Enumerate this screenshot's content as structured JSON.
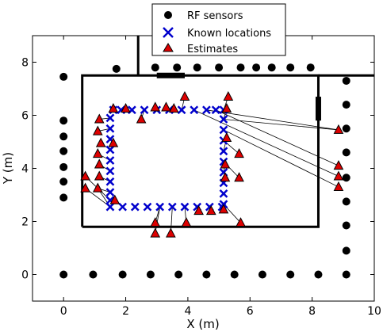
{
  "chart_data": {
    "type": "scatter",
    "xlabel": "X (m)",
    "ylabel": "Y (m)",
    "xlim": [
      -1,
      10
    ],
    "ylim": [
      -1,
      9
    ],
    "xticks": [
      "0",
      "2",
      "4",
      "6",
      "8",
      "10"
    ],
    "yticks": [
      "0",
      "2",
      "4",
      "6",
      "8"
    ],
    "grid": false,
    "legend_position": "top-center",
    "colors": {
      "sensor": "#000000",
      "known": "#0000cc",
      "estimate": "#dd0000"
    },
    "legend": [
      "RF sensors",
      "Known locations",
      "Estimates"
    ],
    "walls": [
      [
        [
          0.6,
          1.8
        ],
        [
          8.2,
          1.8
        ],
        [
          8.2,
          7.5
        ],
        [
          0.6,
          7.5
        ],
        [
          0.6,
          1.8
        ]
      ],
      [
        [
          8.2,
          7.5
        ],
        [
          10.0,
          7.5
        ]
      ],
      [
        [
          2.4,
          7.5
        ],
        [
          2.4,
          9.0
        ]
      ]
    ],
    "doors": [
      [
        [
          3.0,
          7.5
        ],
        [
          3.9,
          7.5
        ]
      ],
      [
        [
          8.2,
          5.8
        ],
        [
          8.2,
          6.7
        ]
      ]
    ],
    "sensors": [
      [
        0,
        0
      ],
      [
        0.95,
        0
      ],
      [
        1.9,
        0
      ],
      [
        2.8,
        0
      ],
      [
        3.7,
        0
      ],
      [
        4.6,
        0
      ],
      [
        5.5,
        0
      ],
      [
        6.4,
        0
      ],
      [
        7.3,
        0
      ],
      [
        8.2,
        0
      ],
      [
        9.1,
        0
      ],
      [
        9.1,
        0.9
      ],
      [
        9.1,
        1.85
      ],
      [
        9.1,
        2.75
      ],
      [
        9.1,
        3.65
      ],
      [
        9.1,
        4.6
      ],
      [
        9.1,
        5.5
      ],
      [
        9.1,
        6.4
      ],
      [
        9.1,
        7.3
      ],
      [
        0,
        2.9
      ],
      [
        0,
        3.5
      ],
      [
        0,
        4.05
      ],
      [
        0,
        4.65
      ],
      [
        0,
        5.2
      ],
      [
        0,
        5.8
      ],
      [
        0,
        7.45
      ],
      [
        1.7,
        7.75
      ],
      [
        2.95,
        7.8
      ],
      [
        3.65,
        7.8
      ],
      [
        4.3,
        7.8
      ],
      [
        5.0,
        7.8
      ],
      [
        5.7,
        7.8
      ],
      [
        6.2,
        7.8
      ],
      [
        6.7,
        7.8
      ],
      [
        7.3,
        7.8
      ],
      [
        7.95,
        7.8
      ]
    ],
    "known": [
      [
        1.5,
        2.55
      ],
      [
        1.9,
        2.55
      ],
      [
        2.3,
        2.55
      ],
      [
        2.7,
        2.55
      ],
      [
        3.1,
        2.55
      ],
      [
        3.5,
        2.55
      ],
      [
        3.9,
        2.55
      ],
      [
        4.3,
        2.55
      ],
      [
        4.7,
        2.55
      ],
      [
        5.1,
        2.55
      ],
      [
        5.15,
        2.65
      ],
      [
        5.15,
        3.05
      ],
      [
        5.15,
        3.45
      ],
      [
        5.15,
        3.85
      ],
      [
        5.15,
        4.25
      ],
      [
        5.15,
        4.65
      ],
      [
        5.15,
        5.05
      ],
      [
        5.15,
        5.45
      ],
      [
        5.15,
        5.85
      ],
      [
        5.15,
        6.2
      ],
      [
        4.9,
        6.2
      ],
      [
        4.6,
        6.2
      ],
      [
        4.2,
        6.2
      ],
      [
        3.8,
        6.2
      ],
      [
        3.4,
        6.2
      ],
      [
        3.0,
        6.2
      ],
      [
        2.6,
        6.2
      ],
      [
        2.2,
        6.2
      ],
      [
        1.85,
        6.2
      ],
      [
        1.6,
        6.2
      ],
      [
        1.5,
        5.9
      ],
      [
        1.5,
        5.5
      ],
      [
        1.5,
        5.1
      ],
      [
        1.5,
        4.7
      ],
      [
        1.5,
        4.3
      ],
      [
        1.5,
        3.9
      ],
      [
        1.5,
        3.5
      ],
      [
        1.5,
        3.1
      ],
      [
        1.5,
        2.8
      ]
    ],
    "estimates": [
      [
        0.7,
        3.7
      ],
      [
        0.7,
        3.25
      ],
      [
        1.1,
        3.25
      ],
      [
        1.15,
        3.7
      ],
      [
        1.15,
        4.15
      ],
      [
        1.1,
        4.55
      ],
      [
        1.2,
        4.95
      ],
      [
        1.1,
        5.4
      ],
      [
        1.15,
        5.85
      ],
      [
        1.6,
        4.95
      ],
      [
        1.6,
        6.25
      ],
      [
        1.65,
        2.8
      ],
      [
        2.0,
        6.25
      ],
      [
        2.5,
        5.85
      ],
      [
        2.95,
        6.3
      ],
      [
        3.3,
        6.3
      ],
      [
        3.55,
        6.25
      ],
      [
        3.9,
        6.7
      ],
      [
        2.95,
        1.95
      ],
      [
        2.95,
        1.55
      ],
      [
        3.45,
        1.55
      ],
      [
        3.95,
        1.95
      ],
      [
        4.35,
        2.4
      ],
      [
        4.75,
        2.4
      ],
      [
        5.15,
        2.45
      ],
      [
        5.7,
        1.95
      ],
      [
        5.2,
        3.65
      ],
      [
        5.2,
        4.15
      ],
      [
        5.25,
        5.15
      ],
      [
        5.65,
        3.65
      ],
      [
        5.65,
        4.55
      ],
      [
        5.3,
        6.7
      ],
      [
        5.25,
        6.25
      ],
      [
        8.85,
        5.45
      ],
      [
        8.85,
        4.1
      ],
      [
        8.85,
        3.7
      ],
      [
        8.85,
        3.3
      ]
    ],
    "links": [
      [
        [
          0.7,
          3.7
        ],
        [
          1.5,
          2.8
        ]
      ],
      [
        [
          0.7,
          3.25
        ],
        [
          1.5,
          2.55
        ]
      ],
      [
        [
          1.1,
          3.25
        ],
        [
          1.5,
          2.55
        ]
      ],
      [
        [
          1.1,
          3.25
        ],
        [
          1.5,
          3.1
        ]
      ],
      [
        [
          1.15,
          3.7
        ],
        [
          1.5,
          3.5
        ]
      ],
      [
        [
          1.15,
          4.15
        ],
        [
          1.5,
          3.9
        ]
      ],
      [
        [
          1.1,
          4.55
        ],
        [
          1.5,
          4.3
        ]
      ],
      [
        [
          1.2,
          4.95
        ],
        [
          1.5,
          4.7
        ]
      ],
      [
        [
          1.1,
          5.4
        ],
        [
          1.5,
          5.5
        ]
      ],
      [
        [
          1.15,
          5.85
        ],
        [
          1.5,
          5.9
        ]
      ],
      [
        [
          1.6,
          4.95
        ],
        [
          1.5,
          5.1
        ]
      ],
      [
        [
          1.65,
          2.8
        ],
        [
          1.9,
          2.55
        ]
      ],
      [
        [
          1.6,
          6.25
        ],
        [
          1.6,
          6.2
        ]
      ],
      [
        [
          2.5,
          5.85
        ],
        [
          2.6,
          6.2
        ]
      ],
      [
        [
          2.95,
          1.95
        ],
        [
          3.1,
          2.55
        ]
      ],
      [
        [
          2.95,
          1.55
        ],
        [
          3.1,
          2.55
        ]
      ],
      [
        [
          3.45,
          1.55
        ],
        [
          3.5,
          2.55
        ]
      ],
      [
        [
          3.95,
          1.95
        ],
        [
          3.9,
          2.55
        ]
      ],
      [
        [
          4.35,
          2.4
        ],
        [
          4.3,
          2.55
        ]
      ],
      [
        [
          4.75,
          2.4
        ],
        [
          4.7,
          2.55
        ]
      ],
      [
        [
          5.7,
          1.95
        ],
        [
          5.15,
          2.65
        ]
      ],
      [
        [
          5.2,
          3.65
        ],
        [
          5.15,
          3.45
        ]
      ],
      [
        [
          5.2,
          4.15
        ],
        [
          5.15,
          3.85
        ]
      ],
      [
        [
          5.25,
          5.15
        ],
        [
          5.15,
          4.65
        ]
      ],
      [
        [
          5.65,
          3.65
        ],
        [
          5.15,
          4.25
        ]
      ],
      [
        [
          5.65,
          4.55
        ],
        [
          5.15,
          5.05
        ]
      ],
      [
        [
          5.3,
          6.7
        ],
        [
          5.15,
          6.2
        ]
      ],
      [
        [
          5.25,
          6.25
        ],
        [
          5.15,
          5.85
        ]
      ],
      [
        [
          3.9,
          6.7
        ],
        [
          3.8,
          6.2
        ]
      ],
      [
        [
          8.85,
          5.45
        ],
        [
          5.15,
          5.85
        ]
      ],
      [
        [
          8.85,
          5.45
        ],
        [
          4.6,
          6.2
        ]
      ],
      [
        [
          8.85,
          4.1
        ],
        [
          4.9,
          6.2
        ]
      ],
      [
        [
          8.85,
          3.7
        ],
        [
          4.2,
          6.2
        ]
      ],
      [
        [
          8.85,
          3.3
        ],
        [
          5.15,
          5.45
        ]
      ]
    ]
  }
}
